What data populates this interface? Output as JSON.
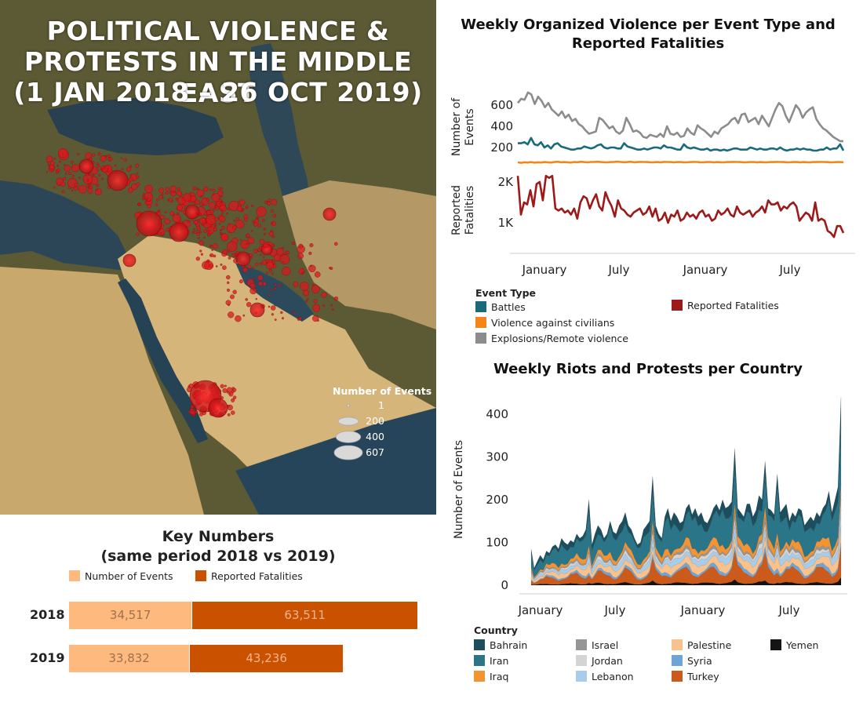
{
  "map": {
    "title_lines": [
      "POLITICAL VIOLENCE &",
      "PROTESTS IN THE MIDDLE EAST",
      "(1 JAN 2018 – 26 OCT 2019)"
    ],
    "legend_title": "Number of Events",
    "legend_items": [
      {
        "label": "1",
        "value": 1
      },
      {
        "label": "200",
        "value": 200
      },
      {
        "label": "400",
        "value": 400
      },
      {
        "label": "607",
        "value": 607
      }
    ],
    "colors": {
      "sea": "#2f4a5e",
      "land_north": "#6b6a3c",
      "desert": "#d7b77e",
      "event": "#d8191e"
    }
  },
  "key_numbers": {
    "title_lines": [
      "Key Numbers",
      "(same period 2018 vs 2019)"
    ],
    "legend": [
      "Number of Events",
      "Reported Fatalities"
    ],
    "colors": {
      "events": "#fdb97e",
      "fatalities": "#c95100"
    },
    "rows": [
      {
        "year": "2018",
        "events": 34517,
        "fatalities": 63511,
        "events_label": "34,517",
        "fatalities_label": "63,511"
      },
      {
        "year": "2019",
        "events": 33832,
        "fatalities": 43236,
        "events_label": "33,832",
        "fatalities_label": "43,236"
      }
    ]
  },
  "chart_data": [
    {
      "type": "line",
      "title": "Weekly Organized Violence per Event Type and Reported Fatalities",
      "x_tick_labels": [
        "January",
        "July",
        "January",
        "July"
      ],
      "panels": [
        {
          "ylabel": "Number of Events",
          "y_tick_labels": [
            "200",
            "400",
            "600"
          ],
          "ylim": [
            0,
            800
          ],
          "series": [
            {
              "name": "Explosions/Remote violence",
              "color": "#8c8c8c",
              "values": [
                620,
                660,
                650,
                720,
                700,
                610,
                680,
                640,
                580,
                620,
                560,
                530,
                500,
                540,
                480,
                510,
                450,
                470,
                420,
                400,
                360,
                330,
                340,
                350,
                480,
                460,
                420,
                380,
                400,
                350,
                330,
                360,
                480,
                420,
                350,
                360,
                340,
                300,
                290,
                320,
                310,
                300,
                330,
                300,
                400,
                330,
                320,
                340,
                300,
                310,
                380,
                340,
                320,
                410,
                380,
                360,
                330,
                300,
                350,
                330,
                380,
                400,
                420,
                460,
                480,
                430,
                510,
                520,
                440,
                460,
                480,
                420,
                500,
                450,
                400,
                480,
                560,
                620,
                590,
                500,
                440,
                520,
                600,
                560,
                480,
                530,
                560,
                580,
                470,
                420,
                380,
                360,
                330,
                300,
                280,
                260,
                260
              ]
            },
            {
              "name": "Battles",
              "color": "#1a6a7b",
              "values": [
                240,
                240,
                250,
                230,
                290,
                230,
                220,
                250,
                200,
                220,
                190,
                230,
                240,
                210,
                200,
                190,
                180,
                180,
                190,
                190,
                210,
                200,
                190,
                200,
                220,
                230,
                200,
                190,
                200,
                200,
                190,
                190,
                240,
                210,
                200,
                190,
                180,
                180,
                190,
                180,
                190,
                200,
                200,
                190,
                220,
                200,
                200,
                190,
                180,
                180,
                230,
                200,
                190,
                200,
                190,
                180,
                180,
                190,
                170,
                180,
                180,
                170,
                180,
                170,
                180,
                190,
                190,
                180,
                180,
                180,
                200,
                190,
                180,
                190,
                180,
                180,
                190,
                190,
                180,
                200,
                180,
                170,
                180,
                180,
                190,
                180,
                190,
                180,
                180,
                170,
                170,
                180,
                180,
                200,
                180,
                190,
                190,
                230,
                170
              ]
            },
            {
              "name": "Violence against civilians",
              "color": "#f58518",
              "values": [
                60,
                55,
                60,
                58,
                62,
                57,
                60,
                58,
                62,
                60,
                58,
                62,
                65,
                60,
                62,
                60,
                58,
                63,
                61,
                65,
                62,
                60,
                63,
                64,
                65,
                62,
                61,
                60,
                62,
                64,
                66,
                63,
                61,
                62,
                65,
                60,
                62,
                64,
                63,
                62,
                60,
                61,
                62,
                60,
                64,
                63,
                62,
                60,
                62,
                63,
                60,
                61,
                62,
                64,
                63,
                60,
                61,
                62,
                63,
                60,
                62,
                61,
                60,
                63,
                62,
                64,
                63,
                62,
                60,
                61,
                62,
                63,
                60,
                62,
                61,
                60,
                63,
                62,
                64,
                63,
                62,
                60,
                61,
                62,
                63,
                60,
                62,
                61,
                60,
                63,
                62,
                64,
                63,
                62,
                60,
                61,
                62,
                62,
                60
              ]
            }
          ]
        },
        {
          "ylabel": "Reported Fatalities",
          "y_tick_labels": [
            "1K",
            "2K"
          ],
          "ylim": [
            0,
            2500
          ],
          "series": [
            {
              "name": "Reported Fatalities",
              "color": "#9c1a1a",
              "values": [
                2150,
                1200,
                1500,
                1450,
                1800,
                1400,
                1950,
                2000,
                1550,
                2150,
                2100,
                2150,
                1350,
                1300,
                1350,
                1250,
                1300,
                1200,
                1350,
                1100,
                1500,
                1650,
                1600,
                1350,
                1550,
                1700,
                1400,
                1300,
                1750,
                1550,
                1400,
                1150,
                1550,
                1350,
                1300,
                1200,
                1150,
                1250,
                1300,
                1350,
                1200,
                1250,
                1400,
                1150,
                1350,
                1050,
                1100,
                1250,
                1000,
                1200,
                1150,
                1300,
                1050,
                1100,
                1250,
                1150,
                1200,
                1100,
                1250,
                1300,
                1150,
                1200,
                1050,
                1100,
                1300,
                1200,
                1250,
                1350,
                1200,
                1150,
                1400,
                1250,
                1200,
                1250,
                1300,
                1150,
                1250,
                1300,
                1400,
                1250,
                1550,
                1450,
                1450,
                1500,
                1300,
                1400,
                1350,
                1450,
                1500,
                1400,
                1050,
                1150,
                1250,
                1200,
                1050,
                1500,
                1050,
                1100,
                1050,
                800,
                750,
                650,
                920,
                920,
                750
              ]
            }
          ]
        }
      ],
      "legend_title": "Event Type",
      "legend_entries": [
        "Battles",
        "Violence against civilians",
        "Explosions/Remote violence",
        "Reported Fatalities"
      ]
    },
    {
      "type": "area",
      "title": "Weekly Riots and Protests per Country",
      "ylabel": "Number of Events",
      "ylim": [
        0,
        450
      ],
      "y_ticks": [
        0,
        100,
        200,
        300,
        400
      ],
      "y_tick_labels": [
        "0",
        "100",
        "200",
        "300",
        "400"
      ],
      "x_tick_labels": [
        "January",
        "July",
        "January",
        "July"
      ],
      "legend_title": "Country",
      "series": [
        {
          "name": "Bahrain",
          "color": "#1d4e5e"
        },
        {
          "name": "Iran",
          "color": "#2a7588"
        },
        {
          "name": "Iraq",
          "color": "#f39331"
        },
        {
          "name": "Israel",
          "color": "#969696"
        },
        {
          "name": "Jordan",
          "color": "#d4d4d4"
        },
        {
          "name": "Lebanon",
          "color": "#a8cdea"
        },
        {
          "name": "Palestine",
          "color": "#f9c18b"
        },
        {
          "name": "Syria",
          "color": "#6ea5d6"
        },
        {
          "name": "Turkey",
          "color": "#cc5a1a"
        },
        {
          "name": "Yemen",
          "color": "#141414"
        }
      ],
      "totals": [
        85,
        40,
        55,
        70,
        60,
        80,
        75,
        90,
        95,
        85,
        110,
        100,
        95,
        105,
        100,
        120,
        110,
        115,
        130,
        200,
        95,
        120,
        140,
        130,
        110,
        120,
        150,
        125,
        120,
        140,
        150,
        170,
        140,
        130,
        110,
        95,
        100,
        130,
        140,
        150,
        255,
        140,
        120,
        110,
        160,
        180,
        150,
        170,
        160,
        145,
        150,
        180,
        190,
        165,
        180,
        160,
        170,
        150,
        145,
        160,
        180,
        190,
        175,
        200,
        180,
        185,
        195,
        320,
        180,
        170,
        160,
        190,
        190,
        160,
        175,
        210,
        200,
        290,
        180,
        175,
        165,
        260,
        170,
        180,
        190,
        150,
        170,
        160,
        180,
        175,
        140,
        150,
        160,
        150,
        170,
        160,
        180,
        190,
        220,
        170,
        200,
        230,
        440
      ]
    }
  ]
}
